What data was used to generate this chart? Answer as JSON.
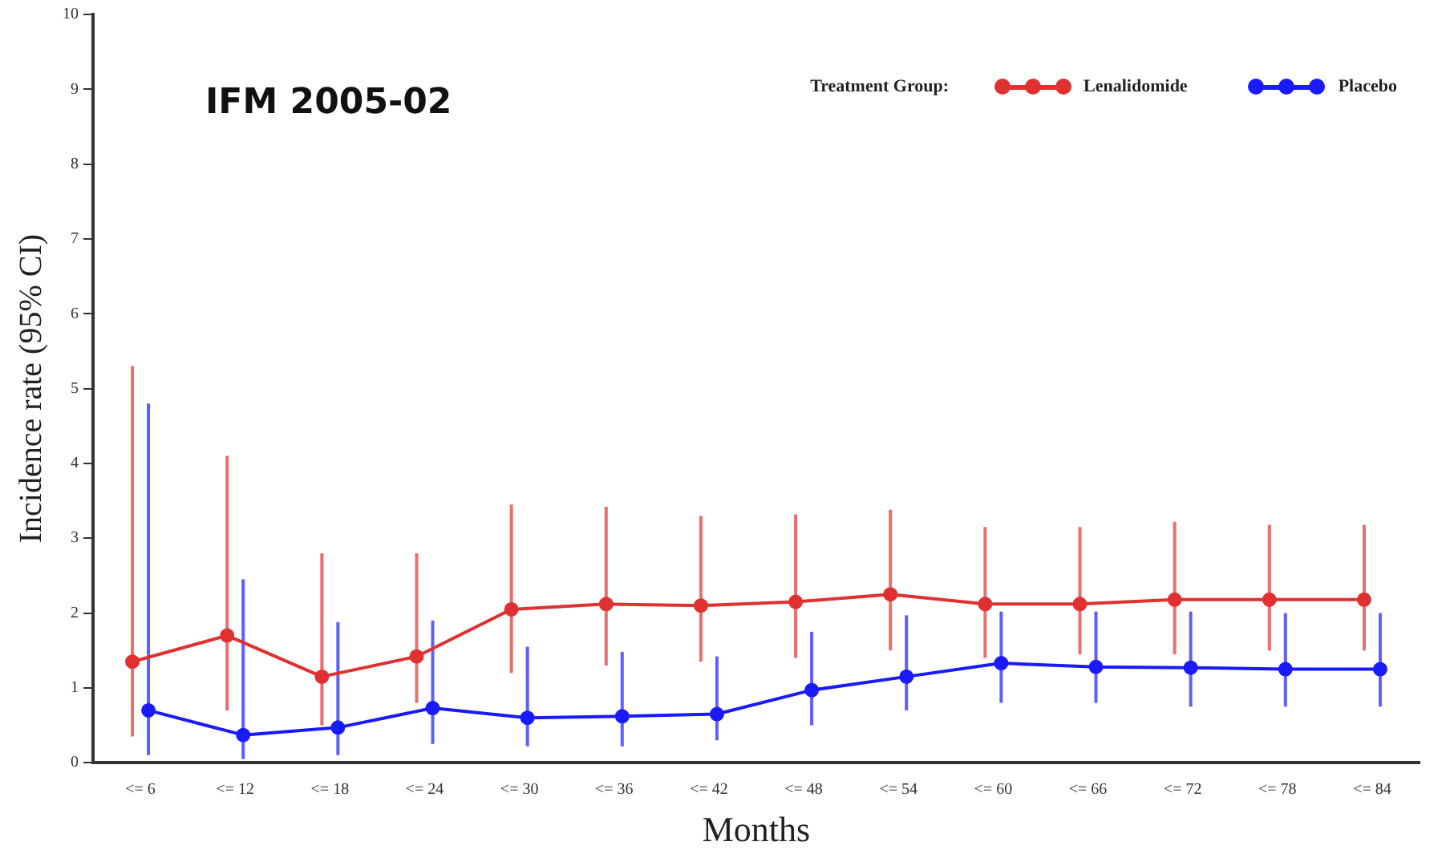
{
  "chart_data": {
    "type": "line",
    "title": "IFM 2005-02",
    "xlabel": "Months",
    "ylabel": "Incidence rate (95% CI)",
    "legend_title": "Treatment Group:",
    "categories": [
      "<= 6",
      "<= 12",
      "<= 18",
      "<= 24",
      "<= 30",
      "<= 36",
      "<= 42",
      "<= 48",
      "<= 54",
      "<= 60",
      "<= 66",
      "<= 72",
      "<= 78",
      "<= 84"
    ],
    "series": [
      {
        "name": "Lenalidomide",
        "color": "#e03030",
        "values": [
          1.35,
          1.7,
          1.15,
          1.42,
          2.05,
          2.12,
          2.1,
          2.15,
          2.25,
          2.12,
          2.12,
          2.18,
          2.18,
          2.18
        ],
        "errors": [
          [
            0.35,
            5.3
          ],
          [
            0.7,
            4.1
          ],
          [
            0.5,
            2.8
          ],
          [
            0.8,
            2.8
          ],
          [
            1.2,
            3.45
          ],
          [
            1.3,
            3.42
          ],
          [
            1.35,
            3.3
          ],
          [
            1.4,
            3.32
          ],
          [
            1.5,
            3.38
          ],
          [
            1.4,
            3.15
          ],
          [
            1.45,
            3.15
          ],
          [
            1.45,
            3.22
          ],
          [
            1.5,
            3.18
          ],
          [
            1.5,
            3.18
          ]
        ]
      },
      {
        "name": "Placebo",
        "color": "#1a1aff",
        "values": [
          0.7,
          0.37,
          0.47,
          0.73,
          0.6,
          0.62,
          0.65,
          0.97,
          1.15,
          1.33,
          1.28,
          1.27,
          1.25,
          1.25
        ],
        "errors": [
          [
            0.1,
            4.8
          ],
          [
            0.05,
            2.45
          ],
          [
            0.1,
            1.88
          ],
          [
            0.25,
            1.9
          ],
          [
            0.22,
            1.55
          ],
          [
            0.22,
            1.48
          ],
          [
            0.3,
            1.42
          ],
          [
            0.5,
            1.75
          ],
          [
            0.7,
            1.97
          ],
          [
            0.8,
            2.02
          ],
          [
            0.8,
            2.02
          ],
          [
            0.75,
            2.02
          ],
          [
            0.75,
            2.0
          ],
          [
            0.75,
            2.0
          ]
        ]
      }
    ],
    "ylim": [
      0,
      10
    ],
    "yticks": [
      0,
      1,
      2,
      3,
      4,
      5,
      6,
      7,
      8,
      9,
      10
    ],
    "grid": false,
    "legend": "top right",
    "marker": "circle",
    "line_style": "solid"
  }
}
